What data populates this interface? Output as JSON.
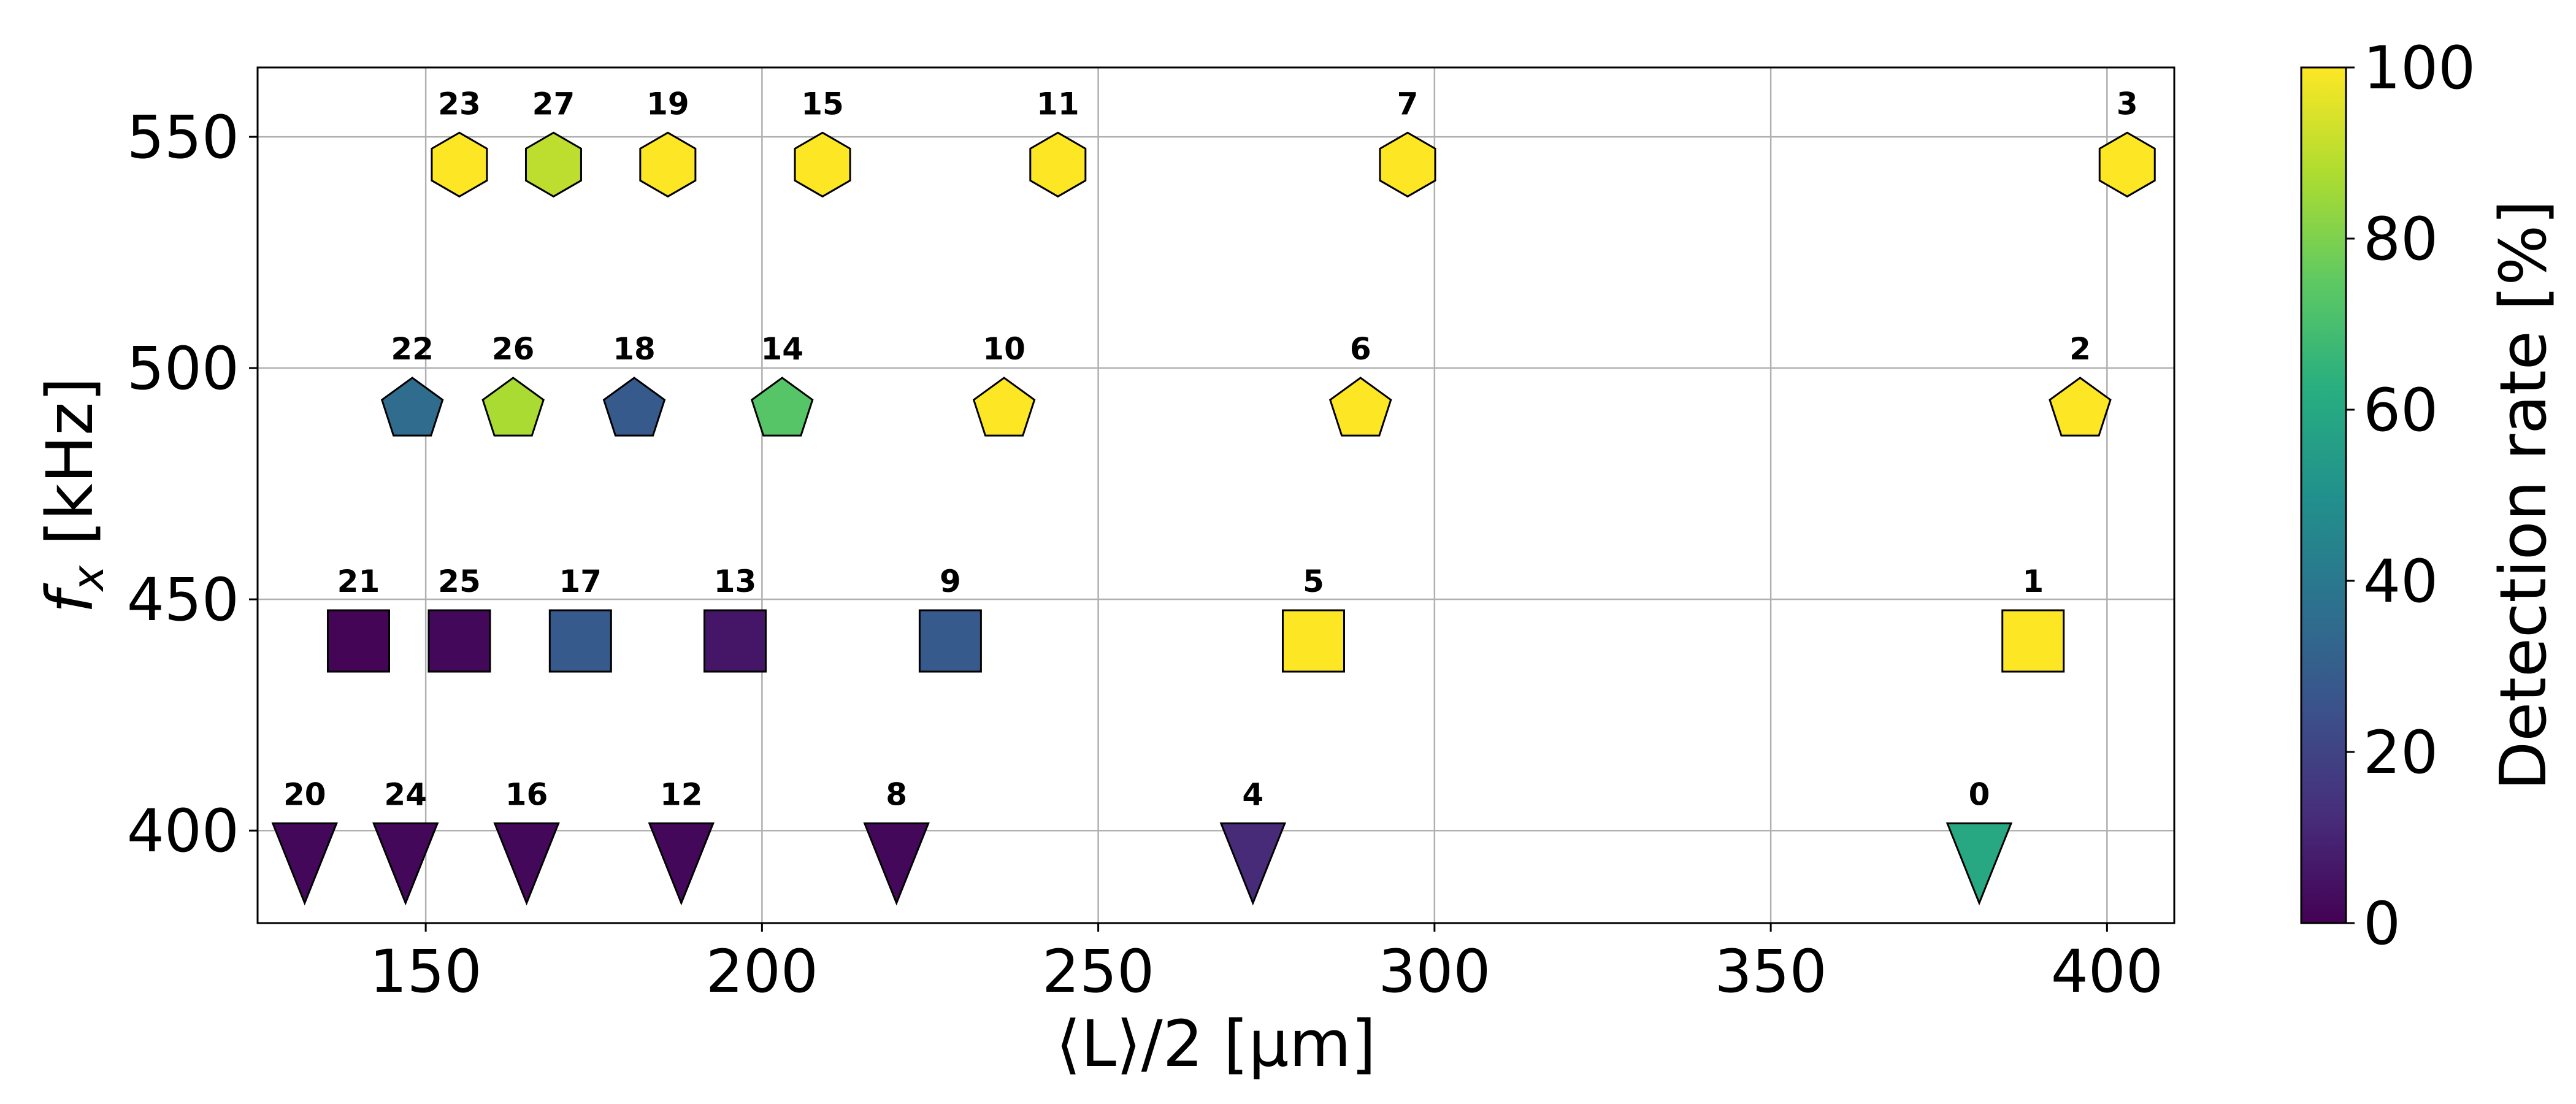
{
  "chart_data": {
    "type": "scatter",
    "xlabel": "⟨L⟩/2 [µm]",
    "ylabel_main": "f",
    "ylabel_sub": "x",
    "ylabel_unit": " [kHz]",
    "xlim": [
      125,
      410
    ],
    "ylim": [
      380,
      565
    ],
    "xticks": [
      150,
      200,
      250,
      300,
      350,
      400
    ],
    "yticks": [
      400,
      450,
      500,
      550
    ],
    "grid": true,
    "colorbar": {
      "label": "Detection rate [%]",
      "range": [
        0,
        100
      ],
      "ticks": [
        0,
        20,
        40,
        60,
        80,
        100
      ],
      "colormap": "viridis"
    },
    "points": [
      {
        "label": "0",
        "x": 381,
        "y": 396,
        "marker": "triangle-down",
        "rate": 60
      },
      {
        "label": "1",
        "x": 389,
        "y": 441,
        "marker": "square",
        "rate": 100
      },
      {
        "label": "2",
        "x": 396,
        "y": 491,
        "marker": "pentagon",
        "rate": 100
      },
      {
        "label": "3",
        "x": 403,
        "y": 544,
        "marker": "hexagon",
        "rate": 100
      },
      {
        "label": "4",
        "x": 273,
        "y": 396,
        "marker": "triangle-down",
        "rate": 12
      },
      {
        "label": "5",
        "x": 282,
        "y": 441,
        "marker": "square",
        "rate": 100
      },
      {
        "label": "6",
        "x": 289,
        "y": 491,
        "marker": "pentagon",
        "rate": 100
      },
      {
        "label": "7",
        "x": 296,
        "y": 544,
        "marker": "hexagon",
        "rate": 100
      },
      {
        "label": "8",
        "x": 220,
        "y": 396,
        "marker": "triangle-down",
        "rate": 2
      },
      {
        "label": "9",
        "x": 228,
        "y": 441,
        "marker": "square",
        "rate": 28
      },
      {
        "label": "10",
        "x": 236,
        "y": 491,
        "marker": "pentagon",
        "rate": 100
      },
      {
        "label": "11",
        "x": 244,
        "y": 544,
        "marker": "hexagon",
        "rate": 100
      },
      {
        "label": "12",
        "x": 188,
        "y": 396,
        "marker": "triangle-down",
        "rate": 2
      },
      {
        "label": "13",
        "x": 196,
        "y": 441,
        "marker": "square",
        "rate": 6
      },
      {
        "label": "14",
        "x": 203,
        "y": 491,
        "marker": "pentagon",
        "rate": 73
      },
      {
        "label": "15",
        "x": 209,
        "y": 544,
        "marker": "hexagon",
        "rate": 100
      },
      {
        "label": "16",
        "x": 165,
        "y": 396,
        "marker": "triangle-down",
        "rate": 2
      },
      {
        "label": "17",
        "x": 173,
        "y": 441,
        "marker": "square",
        "rate": 28
      },
      {
        "label": "18",
        "x": 181,
        "y": 491,
        "marker": "pentagon",
        "rate": 28
      },
      {
        "label": "19",
        "x": 186,
        "y": 544,
        "marker": "hexagon",
        "rate": 100
      },
      {
        "label": "20",
        "x": 132,
        "y": 396,
        "marker": "triangle-down",
        "rate": 2
      },
      {
        "label": "21",
        "x": 140,
        "y": 441,
        "marker": "square",
        "rate": 1
      },
      {
        "label": "22",
        "x": 148,
        "y": 491,
        "marker": "pentagon",
        "rate": 35
      },
      {
        "label": "23",
        "x": 155,
        "y": 544,
        "marker": "hexagon",
        "rate": 100
      },
      {
        "label": "24",
        "x": 147,
        "y": 396,
        "marker": "triangle-down",
        "rate": 2
      },
      {
        "label": "25",
        "x": 155,
        "y": 441,
        "marker": "square",
        "rate": 2
      },
      {
        "label": "26",
        "x": 163,
        "y": 491,
        "marker": "pentagon",
        "rate": 87
      },
      {
        "label": "27",
        "x": 169,
        "y": 544,
        "marker": "hexagon",
        "rate": 90
      }
    ]
  }
}
